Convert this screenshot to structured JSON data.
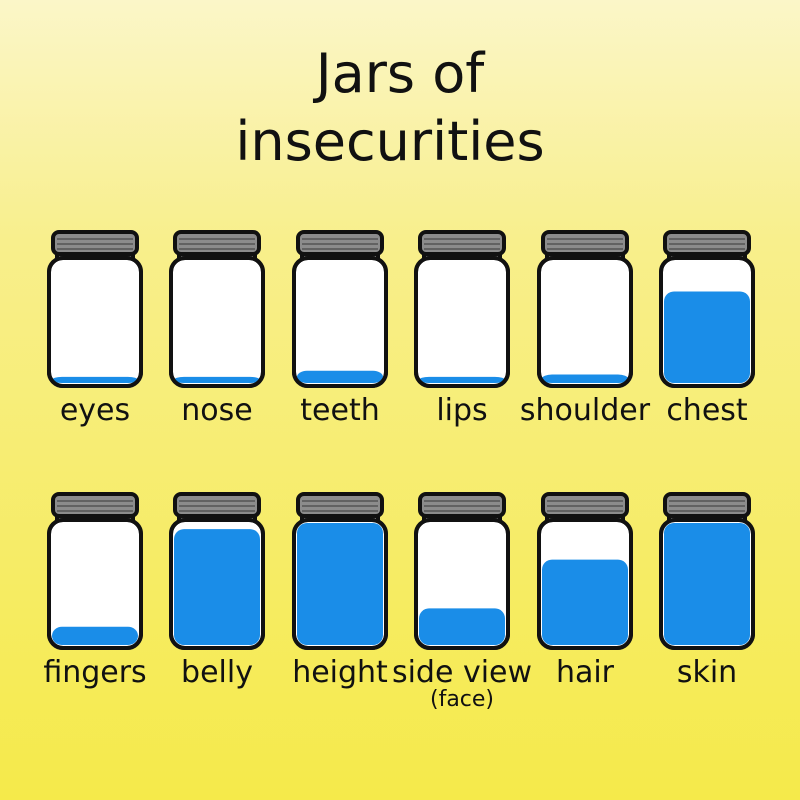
{
  "title_lines": [
    "Jars of",
    "insecurities"
  ],
  "jars": [
    {
      "label": "eyes",
      "fill": 5
    },
    {
      "label": "nose",
      "fill": 5
    },
    {
      "label": "teeth",
      "fill": 10
    },
    {
      "label": "lips",
      "fill": 5
    },
    {
      "label": "shoulder",
      "fill": 7
    },
    {
      "label": "chest",
      "fill": 75
    },
    {
      "label": "fingers",
      "fill": 15
    },
    {
      "label": "belly",
      "fill": 95
    },
    {
      "label": "height",
      "fill": 100
    },
    {
      "label": "side view",
      "sublabel": "(face)",
      "fill": 30
    },
    {
      "label": "hair",
      "fill": 70
    },
    {
      "label": "skin",
      "fill": 100
    }
  ]
}
